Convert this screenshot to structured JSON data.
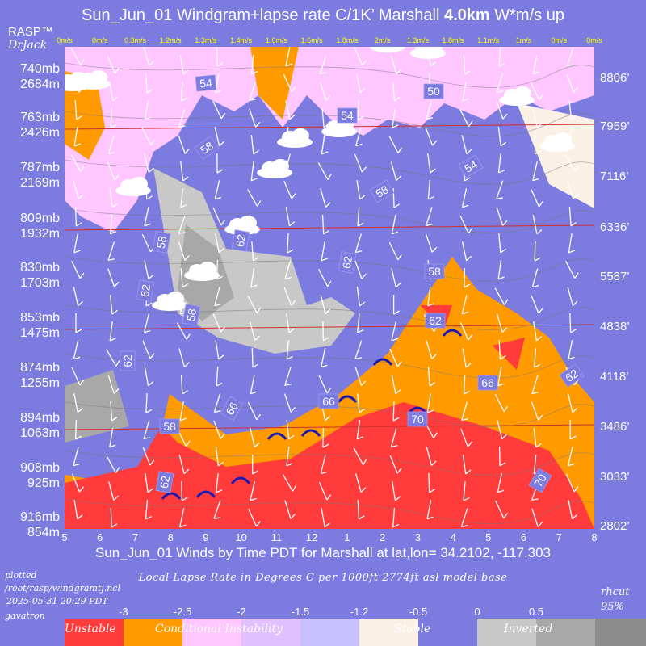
{
  "header": {
    "title_prefix": "Sun_Jun_01 Windgram+lapse rate C/1K’  Marshall ",
    "title_bold": "4.0km",
    "title_suffix": "  W*m/s up",
    "brand_line1": "RASP™",
    "brand_line2": "DrJack"
  },
  "chart_data": {
    "type": "heatmap",
    "title": "Sun_Jun_01 Windgram+lapse rate C/1K’  Marshall 4.0km  W*m/s up",
    "xlabel": "Sun_Jun_01 Winds by Time PDT for Marshall at lat,lon= 34.2102, -117.303",
    "x_ticks": [
      "5",
      "6",
      "7",
      "8",
      "9",
      "10",
      "11",
      "12",
      "1",
      "2",
      "3",
      "4",
      "5",
      "6",
      "7",
      "8"
    ],
    "wstar_top": [
      "0m/s",
      "0m/s",
      "0.3m/s",
      "1.2m/s",
      "1.3m/s",
      "1.4m/s",
      "1.6m/s",
      "1.6m/s",
      "1.8m/s",
      "2m/s",
      "1.3m/s",
      "1.8m/s",
      "1.1m/s",
      "1m/s",
      "0m/s",
      "0m/s"
    ],
    "left_axis": [
      {
        "mb": "740mb",
        "m": "2684m"
      },
      {
        "mb": "763mb",
        "m": "2426m"
      },
      {
        "mb": "787mb",
        "m": "2169m"
      },
      {
        "mb": "809mb",
        "m": "1932m"
      },
      {
        "mb": "830mb",
        "m": "1703m"
      },
      {
        "mb": "853mb",
        "m": "1475m"
      },
      {
        "mb": "874mb",
        "m": "1255m"
      },
      {
        "mb": "894mb",
        "m": "1063m"
      },
      {
        "mb": "908mb",
        "m": "925m"
      },
      {
        "mb": "916mb",
        "m": "854m"
      }
    ],
    "right_axis": [
      "8806’",
      "7959’",
      "7116’",
      "6336’",
      "5587’",
      "4838’",
      "4118’",
      "3486’",
      "3033’",
      "2802’"
    ],
    "contour_labels": [
      "54",
      "50",
      "54",
      "58",
      "54",
      "58",
      "58",
      "62",
      "62",
      "62",
      "58",
      "62",
      "58",
      "66",
      "62",
      "66",
      "62",
      "66",
      "70",
      "58",
      "62",
      "70"
    ],
    "lapse_rate_legend": {
      "label": "Local Lapse Rate in Degrees C per 1000ft  2774ft asl model base",
      "boundaries": [
        "-3",
        "-2.5",
        "-2",
        "-1.5",
        "-1.2",
        "-0.5",
        "0",
        "0.5"
      ],
      "categories": [
        "Unstable",
        "Conditional Instability",
        "Stable",
        "Inverted"
      ],
      "colors": [
        "#ff3b3b",
        "#ff9a00",
        "#ffc6ff",
        "#e2c0ff",
        "#c8c0ff",
        "#faf0e6",
        "#7b7be0",
        "#c8c8c8",
        "#a8a8a8",
        "#8c8c8c"
      ]
    }
  },
  "footer": {
    "plotted_line1": "plotted",
    "plotted_line2": "/root/rasp/windgramtj.ncl",
    "plotted_line3": "2025-05-31 20:29 PDT",
    "plotted_line4": "gavatron",
    "rhcut": "rhcut",
    "rhcut_value": "95%"
  }
}
